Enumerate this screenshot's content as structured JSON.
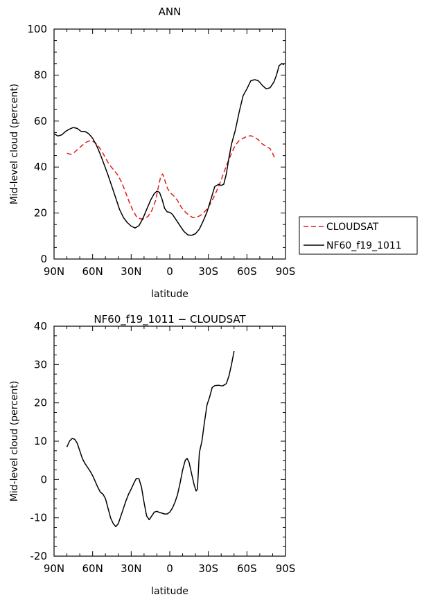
{
  "chart_data": [
    {
      "type": "line",
      "title": "ANN",
      "xlabel": "latitude",
      "ylabel": "Mid-level cloud (percent)",
      "xlim": [
        90,
        -90
      ],
      "ylim": [
        0,
        100
      ],
      "x_ticks": [
        {
          "value": 90,
          "label": "90N"
        },
        {
          "value": 60,
          "label": "60N"
        },
        {
          "value": 30,
          "label": "30N"
        },
        {
          "value": 0,
          "label": "0"
        },
        {
          "value": -30,
          "label": "30S"
        },
        {
          "value": -60,
          "label": "60S"
        },
        {
          "value": -90,
          "label": "90S"
        }
      ],
      "y_ticks": [
        0,
        20,
        40,
        60,
        80,
        100
      ],
      "legend_position": "right",
      "series": [
        {
          "name": "CLOUDSAT",
          "color": "#e41a1c",
          "dash": "dashed",
          "points": [
            [
              80,
              46
            ],
            [
              77,
              45.5
            ],
            [
              74,
              46.5
            ],
            [
              71,
              48
            ],
            [
              68,
              49.5
            ],
            [
              65,
              50.8
            ],
            [
              62,
              51.5
            ],
            [
              59,
              51
            ],
            [
              56,
              49.5
            ],
            [
              53,
              47
            ],
            [
              50,
              44
            ],
            [
              47,
              41
            ],
            [
              44,
              39
            ],
            [
              41,
              37
            ],
            [
              38,
              34
            ],
            [
              35,
              30
            ],
            [
              32,
              25.5
            ],
            [
              29,
              21.5
            ],
            [
              26,
              18.5
            ],
            [
              23,
              17.5
            ],
            [
              20,
              17.5
            ],
            [
              17,
              18.5
            ],
            [
              14,
              21
            ],
            [
              11,
              25.5
            ],
            [
              9,
              31
            ],
            [
              7,
              36
            ],
            [
              5.5,
              37
            ],
            [
              4,
              34.5
            ],
            [
              2,
              31
            ],
            [
              0,
              29
            ],
            [
              -3,
              27.5
            ],
            [
              -6,
              25.5
            ],
            [
              -9,
              22.5
            ],
            [
              -12,
              20.5
            ],
            [
              -15,
              19
            ],
            [
              -18,
              18
            ],
            [
              -21,
              18.2
            ],
            [
              -24,
              19
            ],
            [
              -27,
              20.5
            ],
            [
              -30,
              22.5
            ],
            [
              -33,
              25.5
            ],
            [
              -36,
              29
            ],
            [
              -39,
              33
            ],
            [
              -42,
              37.5
            ],
            [
              -45,
              42
            ],
            [
              -48,
              46
            ],
            [
              -51,
              49.5
            ],
            [
              -54,
              51.5
            ],
            [
              -57,
              52.5
            ],
            [
              -60,
              53.3
            ],
            [
              -63,
              53.6
            ],
            [
              -66,
              53
            ],
            [
              -69,
              51.8
            ],
            [
              -72,
              50
            ],
            [
              -75,
              49
            ],
            [
              -78,
              48
            ],
            [
              -80,
              46
            ],
            [
              -81.5,
              44
            ]
          ]
        },
        {
          "name": "NF60_f19_1011",
          "color": "#000000",
          "dash": "solid",
          "points": [
            [
              90,
              54.5
            ],
            [
              87,
              53.5
            ],
            [
              84,
              54
            ],
            [
              81,
              55.5
            ],
            [
              78,
              56.5
            ],
            [
              75,
              57.2
            ],
            [
              72,
              56.8
            ],
            [
              69,
              55.5
            ],
            [
              66,
              55.5
            ],
            [
              63,
              54.5
            ],
            [
              60,
              52.5
            ],
            [
              57,
              49.5
            ],
            [
              54,
              45.5
            ],
            [
              51,
              41
            ],
            [
              48,
              36.5
            ],
            [
              45,
              31.5
            ],
            [
              42,
              26.5
            ],
            [
              39,
              21.5
            ],
            [
              36,
              18
            ],
            [
              33,
              15.8
            ],
            [
              30,
              14.3
            ],
            [
              27,
              13.5
            ],
            [
              24,
              14.5
            ],
            [
              21,
              17.5
            ],
            [
              18,
              21.5
            ],
            [
              15,
              25.5
            ],
            [
              12,
              28.5
            ],
            [
              10,
              29.5
            ],
            [
              8,
              29
            ],
            [
              6,
              26
            ],
            [
              4,
              22
            ],
            [
              2,
              20.5
            ],
            [
              0,
              20.3
            ],
            [
              -2,
              19.5
            ],
            [
              -5,
              17
            ],
            [
              -8,
              14.5
            ],
            [
              -11,
              12
            ],
            [
              -14,
              10.5
            ],
            [
              -17,
              10.3
            ],
            [
              -20,
              11
            ],
            [
              -23,
              13
            ],
            [
              -26,
              16.5
            ],
            [
              -29,
              20.5
            ],
            [
              -32,
              26
            ],
            [
              -35,
              31.5
            ],
            [
              -38,
              32.5
            ],
            [
              -40,
              32
            ],
            [
              -42,
              32.5
            ],
            [
              -44,
              37
            ],
            [
              -46,
              44
            ],
            [
              -48,
              50
            ],
            [
              -51,
              56
            ],
            [
              -54,
              64
            ],
            [
              -57,
              71
            ],
            [
              -60,
              74
            ],
            [
              -63,
              77.5
            ],
            [
              -66,
              78
            ],
            [
              -69,
              77.5
            ],
            [
              -72,
              75.5
            ],
            [
              -75,
              74
            ],
            [
              -78,
              74.5
            ],
            [
              -81,
              77
            ],
            [
              -83,
              80
            ],
            [
              -85,
              84
            ],
            [
              -87,
              85
            ],
            [
              -89,
              84.5
            ]
          ]
        }
      ]
    },
    {
      "type": "line",
      "title": "NF60_f19_1011 − CLOUDSAT",
      "xlabel": "latitude",
      "ylabel": "Mid-level cloud (percent)",
      "xlim": [
        90,
        -90
      ],
      "ylim": [
        -20,
        40
      ],
      "x_ticks": [
        {
          "value": 90,
          "label": "90N"
        },
        {
          "value": 60,
          "label": "60N"
        },
        {
          "value": 30,
          "label": "30N"
        },
        {
          "value": 0,
          "label": "0"
        },
        {
          "value": -30,
          "label": "30S"
        },
        {
          "value": -60,
          "label": "60S"
        },
        {
          "value": -90,
          "label": "90S"
        }
      ],
      "y_ticks": [
        -20,
        -10,
        0,
        10,
        20,
        30,
        40
      ],
      "series": [
        {
          "color": "#000000",
          "dash": "solid",
          "points": [
            [
              80,
              8.5
            ],
            [
              78,
              10
            ],
            [
              76,
              10.7
            ],
            [
              74,
              10.5
            ],
            [
              72,
              9.5
            ],
            [
              70,
              7.5
            ],
            [
              68,
              5.5
            ],
            [
              66,
              4.2
            ],
            [
              64,
              3.2
            ],
            [
              62,
              2.2
            ],
            [
              60,
              1
            ],
            [
              58,
              -0.5
            ],
            [
              56,
              -2
            ],
            [
              54,
              -3.3
            ],
            [
              52,
              -3.8
            ],
            [
              50,
              -5
            ],
            [
              48,
              -7.5
            ],
            [
              46,
              -10
            ],
            [
              44,
              -11.5
            ],
            [
              42,
              -12.3
            ],
            [
              40,
              -11.5
            ],
            [
              38,
              -9.5
            ],
            [
              36,
              -7.5
            ],
            [
              34,
              -5.5
            ],
            [
              32,
              -3.8
            ],
            [
              30,
              -2.5
            ],
            [
              28,
              -1
            ],
            [
              26,
              0.3
            ],
            [
              24,
              0.2
            ],
            [
              22,
              -2
            ],
            [
              20,
              -6
            ],
            [
              18,
              -9.5
            ],
            [
              16,
              -10.5
            ],
            [
              14,
              -9.5
            ],
            [
              12,
              -8.5
            ],
            [
              10,
              -8.3
            ],
            [
              8,
              -8.6
            ],
            [
              6,
              -8.8
            ],
            [
              4,
              -9
            ],
            [
              2,
              -9
            ],
            [
              0,
              -8.5
            ],
            [
              -2,
              -7.5
            ],
            [
              -4,
              -6
            ],
            [
              -6,
              -4
            ],
            [
              -8,
              -1
            ],
            [
              -10,
              2.5
            ],
            [
              -12,
              5
            ],
            [
              -13.5,
              5.5
            ],
            [
              -15,
              4.5
            ],
            [
              -17,
              1.5
            ],
            [
              -19,
              -1.5
            ],
            [
              -20.5,
              -3
            ],
            [
              -21.5,
              -2.5
            ],
            [
              -23,
              7
            ],
            [
              -25,
              10
            ],
            [
              -27,
              15
            ],
            [
              -29,
              19.5
            ],
            [
              -31,
              21.5
            ],
            [
              -33,
              24
            ],
            [
              -35,
              24.5
            ],
            [
              -38,
              24.6
            ],
            [
              -41,
              24.4
            ],
            [
              -44,
              25
            ],
            [
              -46,
              27
            ],
            [
              -48,
              30
            ],
            [
              -50,
              33.5
            ]
          ]
        }
      ]
    }
  ],
  "legend": {
    "entries": [
      {
        "label": "CLOUDSAT",
        "color": "#e41a1c",
        "dash": "dashed"
      },
      {
        "label": "NF60_f19_1011",
        "color": "#000000",
        "dash": "solid"
      }
    ]
  }
}
